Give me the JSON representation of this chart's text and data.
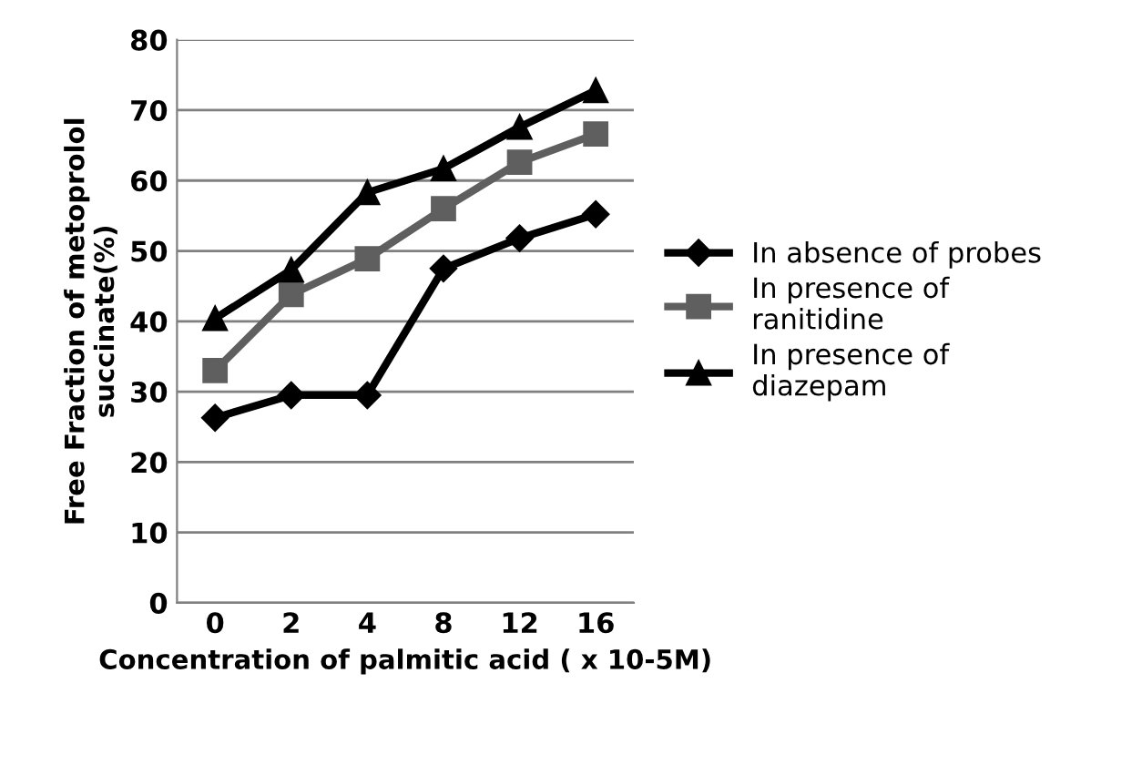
{
  "chart_data": {
    "type": "line",
    "xlabel": "Concentration of palmitic acid ( x 10-5M)",
    "ylabel": "Free Fraction of metoprolol\nsuccinate(%)",
    "categories": [
      "0",
      "2",
      "4",
      "8",
      "12",
      "16"
    ],
    "series": [
      {
        "name": "In absence of probes",
        "color": "#000000",
        "marker": "diamond",
        "values": [
          26.3,
          29.5,
          29.5,
          47.5,
          51.8,
          55.2
        ]
      },
      {
        "name": "In presence of\nranitidine",
        "color": "#5f5f5f",
        "marker": "square",
        "values": [
          33.0,
          43.8,
          48.9,
          56.0,
          62.6,
          66.6
        ]
      },
      {
        "name": "In presence of\ndiazepam",
        "color": "#000000",
        "marker": "triangle",
        "values": [
          40.4,
          47.3,
          58.3,
          61.7,
          67.6,
          72.8
        ]
      }
    ],
    "ylim": [
      0,
      80
    ],
    "yticks": [
      0,
      10,
      20,
      30,
      40,
      50,
      60,
      70,
      80
    ],
    "grid": "y",
    "legend": "right",
    "line_style": "solid"
  }
}
